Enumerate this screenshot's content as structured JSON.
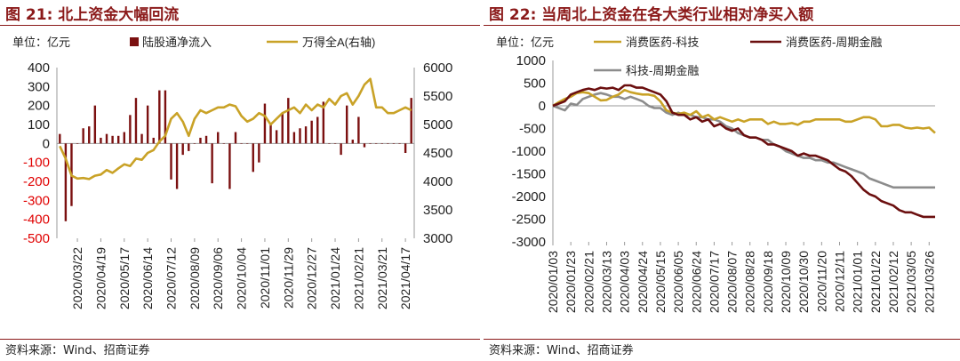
{
  "figures": [
    {
      "title": "图 21:  北上资金大幅回流",
      "source": "资料来源：Wind、招商证券"
    },
    {
      "title": "图 22:  当周北上资金在各大类行业相对净买入额",
      "source": "资料来源：Wind、招商证券"
    }
  ],
  "colors": {
    "title": "#8b1a1a",
    "bar": "#7b1010",
    "gold": "#c9a227",
    "darkred": "#6b0f0f",
    "gray": "#8c8c8c",
    "neg_tick": "#e00000"
  },
  "chart_data": [
    {
      "type": "bar+line",
      "unit_label": "单位：亿元",
      "legend": [
        {
          "name": "陆股通净流入",
          "kind": "bar",
          "axis": "left"
        },
        {
          "name": "万得全A(右轴)",
          "kind": "line",
          "axis": "right"
        }
      ],
      "left_axis": {
        "ylim": [
          -500,
          400
        ],
        "ticks": [
          400,
          300,
          200,
          100,
          0,
          -100,
          -200,
          -300,
          -400,
          -500
        ]
      },
      "right_axis": {
        "ylim": [
          3000,
          6000
        ],
        "ticks": [
          6000,
          5500,
          5000,
          4500,
          4000,
          3500,
          3000
        ]
      },
      "x_tick_labels": [
        "2020/03/22",
        "2020/04/19",
        "2020/05/17",
        "2020/06/14",
        "2020/07/12",
        "2020/08/09",
        "2020/09/06",
        "2020/10/04",
        "2020/11/01",
        "2020/11/29",
        "2020/12/27",
        "2021/01/24",
        "2021/02/21",
        "2021/03/21",
        "2021/04/17"
      ],
      "x_tick_index": [
        3,
        7,
        11,
        15,
        19,
        23,
        27,
        31,
        35,
        39,
        43,
        47,
        51,
        55,
        59
      ],
      "bar_values": [
        50,
        -410,
        -330,
        0,
        80,
        90,
        200,
        30,
        50,
        40,
        40,
        60,
        150,
        240,
        50,
        200,
        30,
        280,
        280,
        -190,
        -240,
        -60,
        -40,
        0,
        30,
        40,
        -210,
        60,
        0,
        -240,
        60,
        0,
        0,
        -150,
        -100,
        210,
        100,
        70,
        160,
        240,
        60,
        80,
        90,
        120,
        140,
        220,
        0,
        0,
        -60,
        200,
        20,
        140,
        -20,
        0,
        0,
        0,
        0,
        0,
        0,
        -50,
        240
      ],
      "line_values": [
        4620,
        4400,
        4100,
        4050,
        4060,
        4040,
        4100,
        4120,
        4200,
        4150,
        4230,
        4300,
        4270,
        4400,
        4380,
        4500,
        4550,
        4700,
        4800,
        5100,
        5200,
        5050,
        4800,
        5100,
        5250,
        5200,
        5250,
        5300,
        5300,
        5350,
        5320,
        5150,
        5050,
        5100,
        5200,
        5150,
        5000,
        5100,
        5200,
        5250,
        5300,
        5200,
        5350,
        5250,
        5350,
        5300,
        5450,
        5350,
        5500,
        5550,
        5350,
        5500,
        5700,
        5800,
        5300,
        5300,
        5200,
        5200,
        5250,
        5300,
        5250
      ]
    },
    {
      "type": "line",
      "unit_label": "单位：亿元",
      "legend": [
        {
          "name": "消费医药-科技",
          "color_key": "gold"
        },
        {
          "name": "消费医药-周期金融",
          "color_key": "darkred"
        },
        {
          "name": "科技-周期金融",
          "color_key": "gray"
        }
      ],
      "ylim": [
        -3000,
        1000
      ],
      "y_ticks": [
        1000,
        500,
        0,
        -500,
        -1000,
        -1500,
        -2000,
        -2500,
        -3000
      ],
      "x_tick_labels": [
        "2020/01/03",
        "2020/01/23",
        "2020/02/21",
        "2020/03/13",
        "2020/04/03",
        "2020/04/24",
        "2020/05/15",
        "2020/06/05",
        "2020/06/24",
        "2020/07/17",
        "2020/08/07",
        "2020/08/28",
        "2020/09/18",
        "2020/10/09",
        "2020/10/30",
        "2020/11/20",
        "2020/12/11",
        "2021/01/01",
        "2021/01/22",
        "2021/02/12",
        "2021/03/05",
        "2021/03/26"
      ],
      "x_tick_index": [
        0,
        3,
        6,
        9,
        12,
        15,
        18,
        21,
        24,
        27,
        30,
        33,
        36,
        39,
        42,
        45,
        48,
        51,
        54,
        57,
        60,
        63
      ],
      "series": [
        {
          "name": "消费医药-科技",
          "values": [
            0,
            80,
            150,
            200,
            280,
            300,
            280,
            200,
            120,
            130,
            200,
            250,
            350,
            300,
            270,
            250,
            250,
            220,
            100,
            -100,
            -150,
            -180,
            -150,
            -200,
            -120,
            -250,
            -200,
            -300,
            -250,
            -300,
            -350,
            -300,
            -350,
            -300,
            -300,
            -300,
            -400,
            -350,
            -400,
            -400,
            -380,
            -420,
            -350,
            -350,
            -300,
            -300,
            -300,
            -300,
            -300,
            -350,
            -350,
            -300,
            -250,
            -250,
            -300,
            -450,
            -450,
            -420,
            -420,
            -480,
            -500,
            -480,
            -500,
            -480,
            -600
          ]
        },
        {
          "name": "消费医药-周期金融",
          "values": [
            0,
            50,
            100,
            250,
            300,
            350,
            380,
            350,
            400,
            380,
            400,
            350,
            450,
            450,
            400,
            400,
            350,
            300,
            250,
            100,
            -150,
            -200,
            -200,
            -300,
            -250,
            -350,
            -300,
            -450,
            -400,
            -500,
            -550,
            -500,
            -650,
            -700,
            -700,
            -750,
            -850,
            -850,
            -900,
            -950,
            -1000,
            -1100,
            -1050,
            -1100,
            -1100,
            -1150,
            -1200,
            -1300,
            -1400,
            -1450,
            -1550,
            -1700,
            -1850,
            -1950,
            -2000,
            -2100,
            -2150,
            -2200,
            -2300,
            -2350,
            -2350,
            -2400,
            -2450,
            -2450,
            -2450
          ]
        },
        {
          "name": "科技-周期金融",
          "values": [
            0,
            -50,
            -100,
            50,
            20,
            150,
            200,
            250,
            280,
            250,
            200,
            200,
            150,
            200,
            150,
            100,
            0,
            -50,
            -50,
            -150,
            -200,
            -150,
            -200,
            -200,
            -250,
            -250,
            -300,
            -300,
            -350,
            -450,
            -500,
            -600,
            -650,
            -700,
            -700,
            -750,
            -750,
            -850,
            -900,
            -1000,
            -1050,
            -1100,
            -1150,
            -1150,
            -1200,
            -1200,
            -1250,
            -1250,
            -1300,
            -1350,
            -1400,
            -1450,
            -1500,
            -1600,
            -1650,
            -1700,
            -1750,
            -1800,
            -1800,
            -1800,
            -1800,
            -1800,
            -1800,
            -1800,
            -1800
          ]
        }
      ]
    }
  ]
}
